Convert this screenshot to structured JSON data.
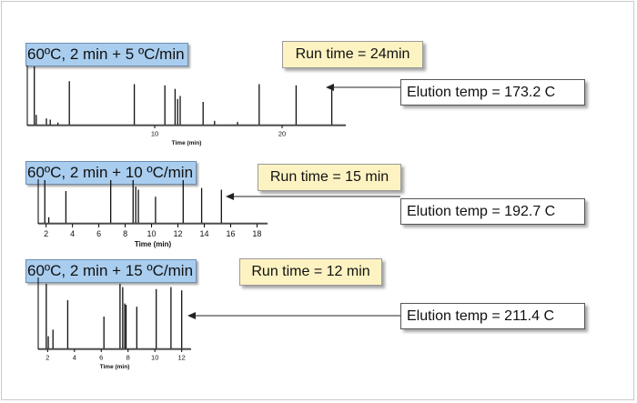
{
  "chart_data": [
    {
      "type": "line",
      "title": "60ºC, 2 min  + 5 ºC/min",
      "run_time_label": "Run time = 24min",
      "elution_label": "Elution temp = 173.2 C",
      "xlabel": "Time (min)",
      "xlim": [
        0,
        25
      ],
      "x_ticks": [
        10,
        20
      ],
      "show_tick_labels": [
        true,
        true
      ],
      "peaks": [
        {
          "x": 0.55,
          "h": 1.0
        },
        {
          "x": 0.7,
          "h": 0.18
        },
        {
          "x": 1.5,
          "h": 0.12
        },
        {
          "x": 1.8,
          "h": 0.1
        },
        {
          "x": 2.4,
          "h": 0.05
        },
        {
          "x": 3.3,
          "h": 0.75
        },
        {
          "x": 8.4,
          "h": 0.7
        },
        {
          "x": 10.8,
          "h": 0.68
        },
        {
          "x": 11.6,
          "h": 0.62
        },
        {
          "x": 11.8,
          "h": 0.45
        },
        {
          "x": 12.0,
          "h": 0.5
        },
        {
          "x": 13.8,
          "h": 0.4
        },
        {
          "x": 14.7,
          "h": 0.08
        },
        {
          "x": 16.5,
          "h": 0.06
        },
        {
          "x": 18.2,
          "h": 0.7
        },
        {
          "x": 21.1,
          "h": 0.68
        },
        {
          "x": 23.9,
          "h": 0.66
        }
      ]
    },
    {
      "type": "line",
      "title": "60ºC, 2 min  + 10 ºC/min",
      "run_time_label": "Run time = 15 min",
      "elution_label": "Elution temp = 192.7 C",
      "xlabel": "Time (min)",
      "xlim": [
        1.4,
        18.8
      ],
      "x_ticks": [
        2,
        4,
        6,
        8,
        10,
        12,
        14,
        16,
        18
      ],
      "show_tick_labels": [
        true,
        true,
        true,
        true,
        true,
        true,
        true,
        true,
        true
      ],
      "peaks": [
        {
          "x": 1.9,
          "h": 1.0
        },
        {
          "x": 2.2,
          "h": 0.15
        },
        {
          "x": 3.5,
          "h": 0.75
        },
        {
          "x": 6.9,
          "h": 1.0
        },
        {
          "x": 8.6,
          "h": 1.0
        },
        {
          "x": 8.8,
          "h": 0.85
        },
        {
          "x": 9.0,
          "h": 0.78
        },
        {
          "x": 10.3,
          "h": 0.62
        },
        {
          "x": 12.4,
          "h": 1.0
        },
        {
          "x": 13.8,
          "h": 0.82
        },
        {
          "x": 15.3,
          "h": 0.78
        }
      ]
    },
    {
      "type": "line",
      "title": "60ºC, 2 min  + 15 ºC/min",
      "run_time_label": "Run time = 12 min",
      "elution_label": "Elution temp = 211.4 C",
      "xlabel": "Time (min)",
      "xlim": [
        1.3,
        12.7
      ],
      "x_ticks": [
        2,
        4,
        6,
        8,
        10,
        12
      ],
      "show_tick_labels": [
        true,
        true,
        true,
        true,
        true,
        true
      ],
      "peaks": [
        {
          "x": 1.9,
          "h": 1.0
        },
        {
          "x": 2.05,
          "h": 0.2
        },
        {
          "x": 2.4,
          "h": 0.3
        },
        {
          "x": 3.5,
          "h": 0.75
        },
        {
          "x": 6.2,
          "h": 0.5
        },
        {
          "x": 7.4,
          "h": 1.0
        },
        {
          "x": 7.6,
          "h": 0.95
        },
        {
          "x": 7.75,
          "h": 0.7
        },
        {
          "x": 7.85,
          "h": 0.68
        },
        {
          "x": 8.65,
          "h": 0.65
        },
        {
          "x": 10.1,
          "h": 0.92
        },
        {
          "x": 11.2,
          "h": 0.95
        },
        {
          "x": 12.0,
          "h": 0.9
        }
      ]
    }
  ]
}
